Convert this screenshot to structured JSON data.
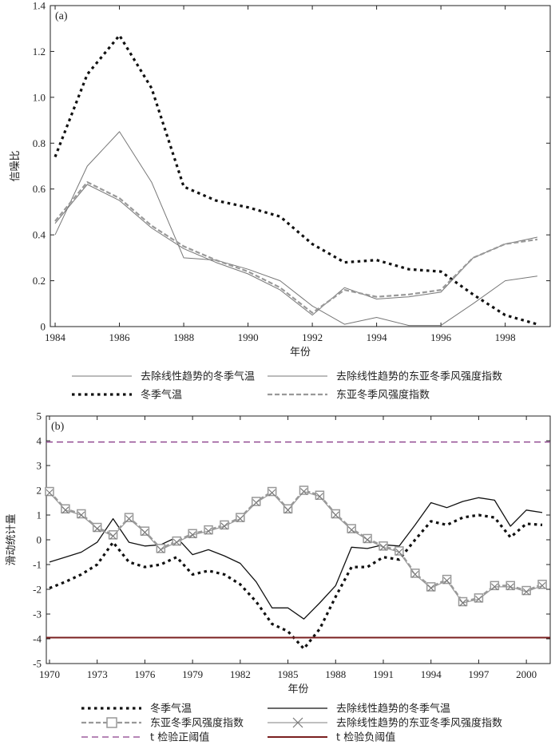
{
  "chart_data": [
    {
      "type": "line",
      "panel_label": "(a)",
      "xlabel": "年份",
      "ylabel": "信噪比",
      "xlim": [
        1983.85,
        1999.4
      ],
      "ylim": [
        0,
        1.4
      ],
      "xticks": [
        1984,
        1986,
        1988,
        1990,
        1992,
        1994,
        1996,
        1998
      ],
      "yticks": [
        0,
        0.2,
        0.4,
        0.6,
        0.8,
        1.0,
        1.2,
        1.4
      ],
      "ytick_labels": [
        "0",
        "0.2",
        "0.4",
        "0.6",
        "0.8",
        "1.0",
        "1.2",
        "1.4"
      ],
      "x": [
        1984,
        1985,
        1986,
        1987,
        1988,
        1989,
        1990,
        1991,
        1992,
        1993,
        1994,
        1995,
        1996,
        1997,
        1998,
        1999
      ],
      "series": [
        {
          "name": "去除线性趋势的冬季气温",
          "style": "thin",
          "color": "#777777",
          "values": [
            0.4,
            0.7,
            0.85,
            0.63,
            0.3,
            0.29,
            0.25,
            0.2,
            0.09,
            0.01,
            0.04,
            0.005,
            0.005,
            0.1,
            0.2,
            0.22
          ]
        },
        {
          "name": "去除线性趋势的东亚冬季风强度指数",
          "style": "thin",
          "color": "#777777",
          "values": [
            0.45,
            0.62,
            0.55,
            0.43,
            0.34,
            0.28,
            0.23,
            0.16,
            0.05,
            0.17,
            0.12,
            0.13,
            0.15,
            0.3,
            0.36,
            0.39
          ]
        },
        {
          "name": "冬季气温",
          "style": "dotted",
          "color": "#111111",
          "values": [
            0.74,
            1.1,
            1.27,
            1.04,
            0.61,
            0.55,
            0.52,
            0.48,
            0.36,
            0.28,
            0.29,
            0.25,
            0.24,
            0.14,
            0.05,
            0.01
          ]
        },
        {
          "name": "东亚冬季风强度指数",
          "style": "dashed",
          "color": "#999999",
          "values": [
            0.46,
            0.63,
            0.56,
            0.44,
            0.35,
            0.29,
            0.24,
            0.17,
            0.06,
            0.16,
            0.13,
            0.14,
            0.16,
            0.3,
            0.36,
            0.38
          ]
        }
      ],
      "legend": [
        "去除线性趋势的冬季气温",
        "去除线性趋势的东亚冬季风强度指数",
        "冬季气温",
        "东亚冬季风强度指数"
      ]
    },
    {
      "type": "line",
      "panel_label": "(b)",
      "xlabel": "年份",
      "ylabel": "滑动统计量",
      "xlim": [
        1969.8,
        2001.5
      ],
      "ylim": [
        -5,
        5
      ],
      "xticks": [
        1970,
        1973,
        1976,
        1979,
        1982,
        1985,
        1988,
        1991,
        1994,
        1997,
        2000
      ],
      "yticks": [
        -5,
        -4,
        -3,
        -2,
        -1,
        0,
        1,
        2,
        3,
        4,
        5
      ],
      "x": [
        1970,
        1971,
        1972,
        1973,
        1974,
        1975,
        1976,
        1977,
        1978,
        1979,
        1980,
        1981,
        1982,
        1983,
        1984,
        1985,
        1986,
        1987,
        1988,
        1989,
        1990,
        1991,
        1992,
        1993,
        1994,
        1995,
        1996,
        1997,
        1998,
        1999,
        2000,
        2001
      ],
      "series": [
        {
          "name": "冬季气温",
          "style": "dotted",
          "color": "#111111",
          "values": [
            -1.95,
            -1.7,
            -1.4,
            -1.0,
            -0.1,
            -0.9,
            -1.1,
            -1.0,
            -0.7,
            -1.4,
            -1.25,
            -1.4,
            -1.8,
            -2.5,
            -3.4,
            -3.7,
            -4.4,
            -3.6,
            -2.3,
            -1.1,
            -1.1,
            -0.7,
            -0.8,
            0.0,
            0.75,
            0.6,
            0.9,
            1.0,
            0.9,
            0.1,
            0.65,
            0.6
          ]
        },
        {
          "name": "去除线性趋势的冬季气温",
          "style": "solid",
          "color": "#111111",
          "values": [
            -0.9,
            -0.7,
            -0.5,
            -0.1,
            0.85,
            -0.1,
            -0.25,
            -0.2,
            0.1,
            -0.6,
            -0.4,
            -0.65,
            -0.95,
            -1.7,
            -2.75,
            -2.75,
            -3.2,
            -2.55,
            -1.85,
            -0.3,
            -0.35,
            -0.2,
            -0.25,
            0.6,
            1.5,
            1.3,
            1.55,
            1.7,
            1.6,
            0.55,
            1.2,
            1.1
          ]
        },
        {
          "name": "东亚冬季风强度指数",
          "style": "dashed-square",
          "color": "#999999",
          "values": [
            1.95,
            1.25,
            1.05,
            0.5,
            0.2,
            0.9,
            0.35,
            -0.35,
            -0.05,
            0.25,
            0.4,
            0.6,
            0.9,
            1.55,
            1.95,
            1.25,
            2.0,
            1.8,
            1.05,
            0.45,
            0.05,
            -0.25,
            -0.45,
            -1.35,
            -1.9,
            -1.6,
            -2.5,
            -2.35,
            -1.85,
            -1.85,
            -2.05,
            -1.8
          ]
        },
        {
          "name": "去除线性趋势的东亚冬季风强度指数",
          "style": "solid-x",
          "color": "#999999",
          "values": [
            1.9,
            1.2,
            1.0,
            0.45,
            0.15,
            0.85,
            0.3,
            -0.4,
            -0.1,
            0.2,
            0.35,
            0.55,
            0.85,
            1.5,
            1.9,
            1.2,
            1.95,
            1.75,
            1.0,
            0.4,
            0.0,
            -0.3,
            -0.5,
            -1.4,
            -1.95,
            -1.65,
            -2.55,
            -2.4,
            -1.9,
            -1.9,
            -2.1,
            -1.85
          ]
        },
        {
          "name": "t 检验正阈值",
          "style": "threshold-dashed",
          "color": "#8a3d8a",
          "constant": 3.95
        },
        {
          "name": "t 检验负阈值",
          "style": "threshold-solid",
          "color": "#7a1f1f",
          "constant": -3.95
        }
      ],
      "legend": [
        "冬季气温",
        "去除线性趋势的冬季气温",
        "东亚冬季风强度指数",
        "去除线性趋势的东亚冬季风强度指数",
        "t 检验正阈值",
        "t 检验负阈值"
      ]
    }
  ]
}
